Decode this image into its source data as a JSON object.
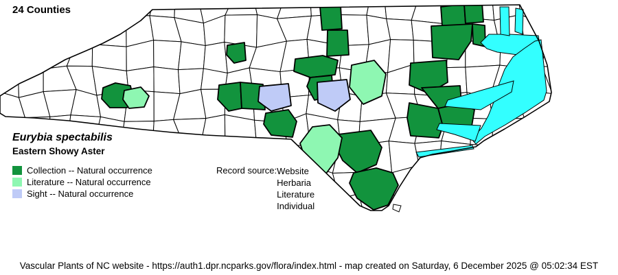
{
  "title": "24 Counties",
  "species": {
    "scientific": "Eurybia spectabilis",
    "common": "Eastern Showy Aster"
  },
  "legend": [
    {
      "key": "collection",
      "label": "Collection -- Natural occurrence",
      "color": "#12933D"
    },
    {
      "key": "literature",
      "label": "Literature -- Natural occurrence",
      "color": "#8EF7B2"
    },
    {
      "key": "sight",
      "label": "Sight -- Natural occurrence",
      "color": "#BFCBF7"
    }
  ],
  "record_source": {
    "label": "Record source:",
    "values": [
      "Website",
      "Herbaria",
      "Literature",
      "Individual"
    ]
  },
  "map": {
    "land_color": "#FFFFFF",
    "border_color": "#000000",
    "water_color": "#33FFFF",
    "county_counts": {
      "collection": 19,
      "literature": 3,
      "sight": 2,
      "total": 24
    }
  },
  "footer": "Vascular Plants of NC website - https://auth1.dpr.ncparks.gov/flora/index.html - map created on Saturday, 6 December 2025 @ 05:02:34 EST"
}
